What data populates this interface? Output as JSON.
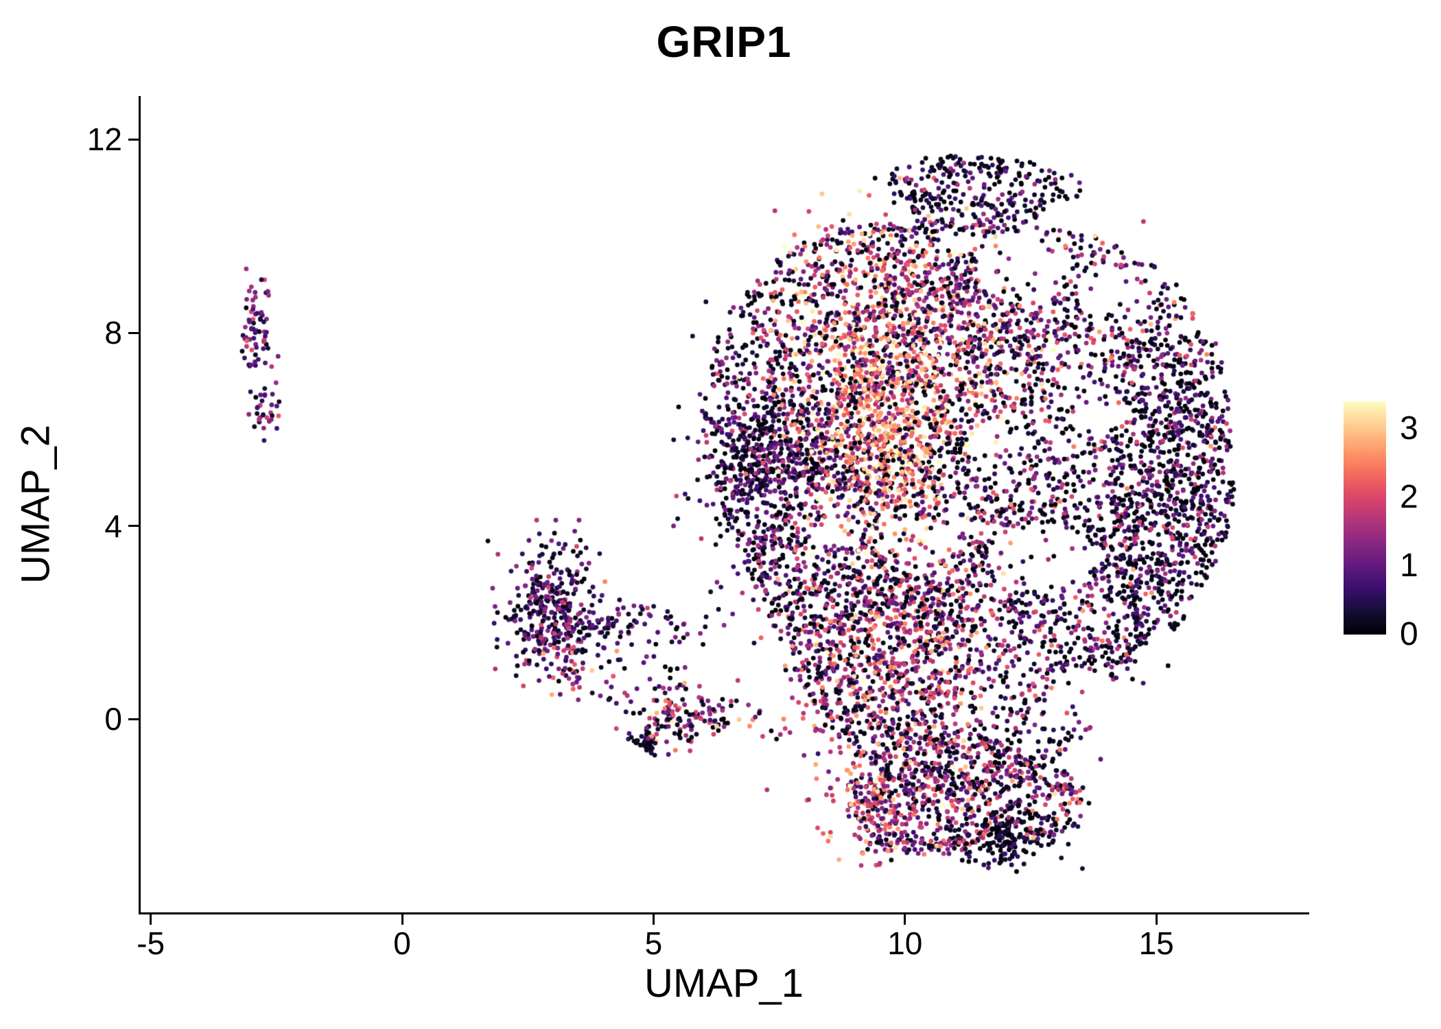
{
  "chart_data": {
    "type": "scatter",
    "title": "GRIP1",
    "xlabel": "UMAP_1",
    "ylabel": "UMAP_2",
    "xlim": [
      -5.2,
      18.0
    ],
    "ylim": [
      -4.0,
      12.9
    ],
    "xticks": [
      -5,
      0,
      5,
      10,
      15
    ],
    "yticks": [
      0,
      4,
      8,
      12
    ],
    "grid": false,
    "background": "#ffffff",
    "axis_color": "#000000",
    "point_radius_px": 3.4,
    "seed": 42,
    "legend": {
      "type": "colorbar",
      "position": "right",
      "ticks": [
        0,
        1,
        2,
        3
      ],
      "vmin": 0,
      "vmax": 3.4,
      "colormap": "magma",
      "stops": [
        {
          "pos": 0.0,
          "color": "#000004"
        },
        {
          "pos": 0.1,
          "color": "#140e36"
        },
        {
          "pos": 0.2,
          "color": "#3b0f70"
        },
        {
          "pos": 0.3,
          "color": "#641a80"
        },
        {
          "pos": 0.4,
          "color": "#8c2981"
        },
        {
          "pos": 0.5,
          "color": "#b73779"
        },
        {
          "pos": 0.6,
          "color": "#de4968"
        },
        {
          "pos": 0.7,
          "color": "#f7705c"
        },
        {
          "pos": 0.8,
          "color": "#fe9f6d"
        },
        {
          "pos": 0.9,
          "color": "#fecf92"
        },
        {
          "pos": 1.0,
          "color": "#fcfdbf"
        }
      ]
    },
    "holes": [
      {
        "cx": 12.35,
        "cy": 9.35,
        "rx": 0.95,
        "ry": 0.75
      },
      {
        "cx": 11.0,
        "cy": 9.9,
        "rx": 0.4,
        "ry": 0.3
      },
      {
        "cx": 12.7,
        "cy": 3.35,
        "rx": 1.05,
        "ry": 0.7
      },
      {
        "cx": 10.3,
        "cy": 3.7,
        "rx": 0.75,
        "ry": 0.5
      },
      {
        "cx": 8.35,
        "cy": 4.15,
        "rx": 0.7,
        "ry": 0.5
      },
      {
        "cx": 11.8,
        "cy": 5.75,
        "rx": 0.55,
        "ry": 0.4
      },
      {
        "cx": 13.9,
        "cy": 6.4,
        "rx": 0.55,
        "ry": 0.45
      },
      {
        "cx": 13.6,
        "cy": 0.4,
        "rx": 0.8,
        "ry": 0.55
      },
      {
        "cx": 14.2,
        "cy": 8.9,
        "rx": 0.6,
        "ry": 0.45
      }
    ],
    "clusters": [
      {
        "name": "left-islet-upper",
        "dist": "gauss",
        "cx": -2.88,
        "cy": 8.0,
        "rx": 0.17,
        "ry": 0.55,
        "n": 70,
        "expr_mean": 1.1,
        "expr_sd": 0.55,
        "zero_frac": 0.15,
        "respect_holes": false
      },
      {
        "name": "left-islet-lower",
        "dist": "gauss",
        "cx": -2.72,
        "cy": 6.45,
        "rx": 0.14,
        "ry": 0.28,
        "n": 30,
        "expr_mean": 1.0,
        "expr_sd": 0.6,
        "zero_frac": 0.2,
        "respect_holes": false
      },
      {
        "name": "left-mid-cluster",
        "dist": "gauss",
        "cx": 2.95,
        "cy": 2.3,
        "rx": 0.5,
        "ry": 0.7,
        "n": 320,
        "expr_mean": 0.9,
        "expr_sd": 0.55,
        "zero_frac": 0.25,
        "respect_holes": false
      },
      {
        "name": "left-mid-tail",
        "dist": "gauss",
        "cx": 4.6,
        "cy": 1.95,
        "rx": 0.9,
        "ry": 0.2,
        "n": 85,
        "expr_mean": 0.9,
        "expr_sd": 0.5,
        "zero_frac": 0.25,
        "respect_holes": false
      },
      {
        "name": "left-mid-warm-toe",
        "dist": "gauss",
        "cx": 3.35,
        "cy": 1.15,
        "rx": 0.3,
        "ry": 0.35,
        "n": 55,
        "expr_mean": 1.6,
        "expr_sd": 0.7,
        "zero_frac": 0.15,
        "respect_holes": false
      },
      {
        "name": "small-cluster-lower",
        "dist": "gauss",
        "cx": 5.65,
        "cy": 0.05,
        "rx": 0.6,
        "ry": 0.3,
        "n": 130,
        "expr_mean": 1.4,
        "expr_sd": 0.8,
        "zero_frac": 0.2,
        "respect_holes": false
      },
      {
        "name": "small-cluster-darkknot",
        "dist": "gauss",
        "cx": 4.85,
        "cy": -0.5,
        "rx": 0.12,
        "ry": 0.15,
        "n": 45,
        "expr_mean": 0.35,
        "expr_sd": 0.35,
        "zero_frac": 0.5,
        "respect_holes": false
      },
      {
        "name": "sparse-bridge",
        "dist": "uniform",
        "cx": 4.7,
        "cy": 1.0,
        "rx": 1.0,
        "ry": 0.9,
        "n": 40,
        "expr_mean": 1.0,
        "expr_sd": 0.7,
        "zero_frac": 0.3,
        "respect_holes": false
      },
      {
        "name": "main-body",
        "dist": "uniform",
        "cx": 11.2,
        "cy": 4.9,
        "rx": 5.05,
        "ry": 5.95,
        "n": 4300,
        "expr_mean": 1.0,
        "expr_sd": 0.72,
        "zero_frac": 0.32,
        "respect_holes": true
      },
      {
        "name": "main-left-dense",
        "dist": "gauss",
        "cx": 7.35,
        "cy": 5.2,
        "rx": 0.75,
        "ry": 1.05,
        "n": 480,
        "expr_mean": 0.9,
        "expr_sd": 0.5,
        "zero_frac": 0.3,
        "respect_holes": false
      },
      {
        "name": "hot-band-upper",
        "dist": "gauss",
        "cx": 9.3,
        "cy": 7.3,
        "rx": 1.0,
        "ry": 1.5,
        "n": 780,
        "expr_mean": 2.4,
        "expr_sd": 0.7,
        "zero_frac": 0.08,
        "respect_holes": false
      },
      {
        "name": "hot-core",
        "dist": "gauss",
        "cx": 9.6,
        "cy": 5.7,
        "rx": 0.65,
        "ry": 0.85,
        "n": 300,
        "expr_mean": 2.8,
        "expr_sd": 0.45,
        "zero_frac": 0.05,
        "respect_holes": false
      },
      {
        "name": "warm-upper-right",
        "dist": "gauss",
        "cx": 11.0,
        "cy": 8.1,
        "rx": 1.2,
        "ry": 1.1,
        "n": 340,
        "expr_mean": 1.9,
        "expr_sd": 0.8,
        "zero_frac": 0.12,
        "respect_holes": true
      },
      {
        "name": "warm-lower-band",
        "dist": "gauss",
        "cx": 9.6,
        "cy": 1.2,
        "rx": 1.0,
        "ry": 1.5,
        "n": 540,
        "expr_mean": 1.9,
        "expr_sd": 0.75,
        "zero_frac": 0.15,
        "respect_holes": false
      },
      {
        "name": "warm-center",
        "dist": "gauss",
        "cx": 10.8,
        "cy": 2.7,
        "rx": 1.2,
        "ry": 0.95,
        "n": 240,
        "expr_mean": 1.6,
        "expr_sd": 0.8,
        "zero_frac": 0.2,
        "respect_holes": true
      },
      {
        "name": "top-rim-dark",
        "dist": "uniform",
        "cx": 11.5,
        "cy": 10.9,
        "rx": 1.9,
        "ry": 0.8,
        "n": 270,
        "expr_mean": 0.55,
        "expr_sd": 0.5,
        "zero_frac": 0.45,
        "respect_holes": false
      },
      {
        "name": "right-edge-dark",
        "dist": "uniform",
        "cx": 15.2,
        "cy": 4.9,
        "rx": 1.25,
        "ry": 3.1,
        "n": 580,
        "expr_mean": 0.75,
        "expr_sd": 0.6,
        "zero_frac": 0.4,
        "respect_holes": true
      },
      {
        "name": "bottom-lobe",
        "dist": "uniform",
        "cx": 11.1,
        "cy": -1.6,
        "rx": 2.4,
        "ry": 1.25,
        "n": 640,
        "expr_mean": 1.4,
        "expr_sd": 0.8,
        "zero_frac": 0.25,
        "respect_holes": false
      },
      {
        "name": "bottom-dark-knot",
        "dist": "gauss",
        "cx": 12.1,
        "cy": -2.35,
        "rx": 0.55,
        "ry": 0.35,
        "n": 170,
        "expr_mean": 0.3,
        "expr_sd": 0.3,
        "zero_frac": 0.55,
        "respect_holes": false
      },
      {
        "name": "bottom-left-warm",
        "dist": "gauss",
        "cx": 9.35,
        "cy": -1.9,
        "rx": 0.5,
        "ry": 0.55,
        "n": 120,
        "expr_mean": 1.9,
        "expr_sd": 0.7,
        "zero_frac": 0.1,
        "respect_holes": false
      },
      {
        "name": "outlier-fringe",
        "dist": "uniform",
        "cx": 11.0,
        "cy": 5.0,
        "rx": 5.6,
        "ry": 6.6,
        "n": 60,
        "expr_mean": 1.1,
        "expr_sd": 0.7,
        "zero_frac": 0.35,
        "respect_holes": false
      }
    ]
  }
}
